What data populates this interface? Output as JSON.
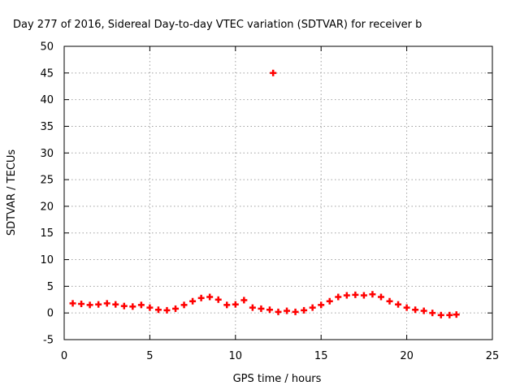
{
  "chart_data": {
    "type": "scatter",
    "title": "Day 277 of 2016, Sidereal Day-to-day VTEC variation (SDTVAR) for receiver b",
    "xlabel": "GPS time / hours",
    "ylabel": "SDTVAR / TECUs",
    "xlim": [
      0,
      25
    ],
    "ylim": [
      -5,
      50
    ],
    "x_ticks": [
      "0",
      "5",
      "10",
      "15",
      "20",
      "25"
    ],
    "y_ticks": [
      "-5",
      "0",
      "5",
      "10",
      "15",
      "20",
      "25",
      "30",
      "35",
      "40",
      "45",
      "50"
    ],
    "grid": true,
    "legend": "none",
    "series": [
      {
        "color": "#ff0000",
        "marker": "plus",
        "x": [
          0.5,
          1.0,
          1.5,
          2.0,
          2.5,
          3.0,
          3.5,
          4.0,
          4.5,
          5.0,
          5.5,
          6.0,
          6.5,
          7.0,
          7.5,
          8.0,
          8.5,
          9.0,
          9.5,
          10.0,
          10.5,
          11.0,
          11.5,
          12.0,
          12.5,
          13.0,
          13.5,
          14.0,
          14.5,
          15.0,
          15.5,
          16.0,
          16.5,
          17.0,
          17.5,
          18.0,
          18.5,
          19.0,
          19.5,
          20.0,
          20.5,
          21.0,
          21.5,
          22.0,
          22.5,
          22.9,
          12.2
        ],
        "y": [
          1.8,
          1.7,
          1.5,
          1.6,
          1.8,
          1.6,
          1.3,
          1.2,
          1.5,
          1.0,
          0.6,
          0.5,
          0.8,
          1.5,
          2.2,
          2.8,
          3.0,
          2.5,
          1.5,
          1.6,
          2.4,
          1.0,
          0.8,
          0.6,
          0.2,
          0.4,
          0.2,
          0.5,
          1.0,
          1.5,
          2.2,
          3.0,
          3.3,
          3.4,
          3.3,
          3.5,
          3.0,
          2.2,
          1.6,
          1.0,
          0.6,
          0.4,
          0.0,
          -0.4,
          -0.4,
          -0.3,
          45.0
        ]
      }
    ]
  }
}
